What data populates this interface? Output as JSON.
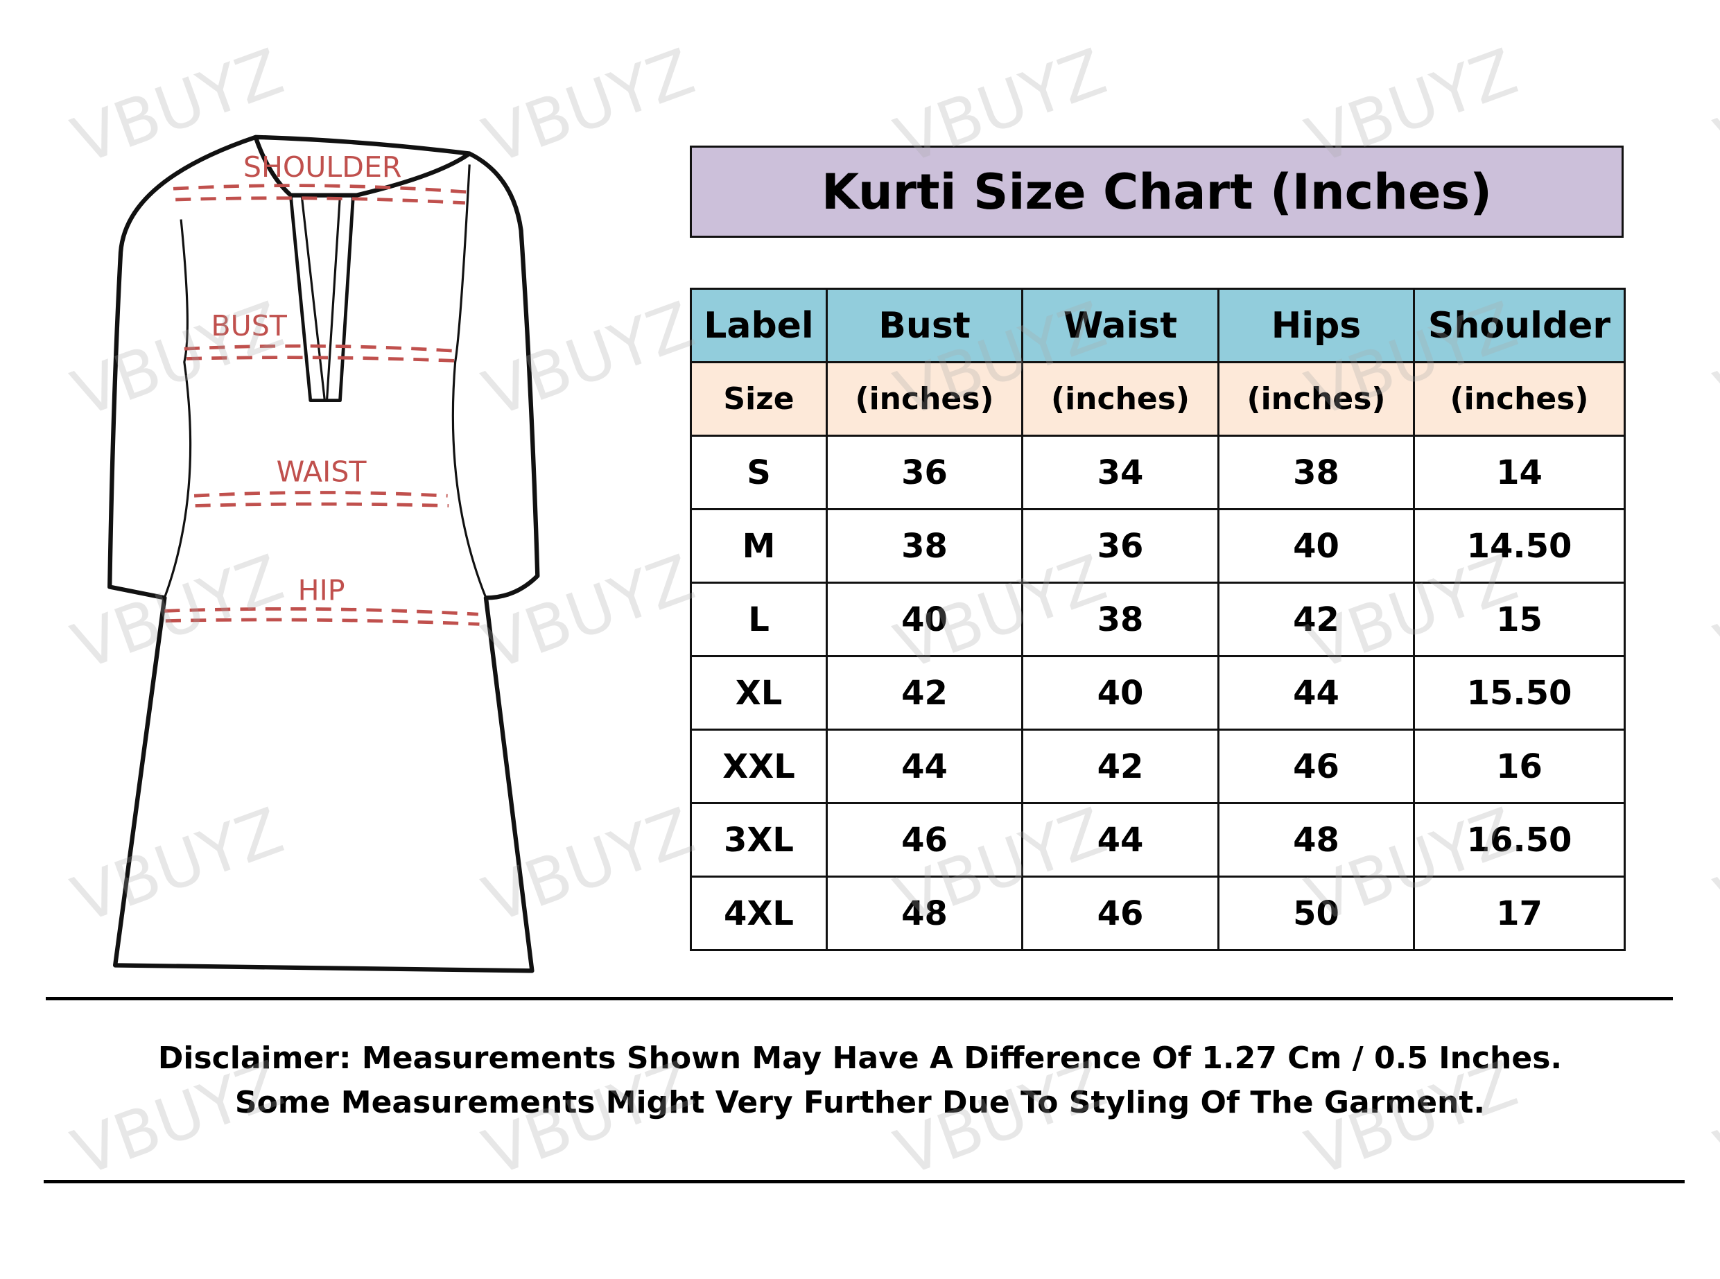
{
  "watermark": "VBUYZ",
  "diagram": {
    "labels": {
      "shoulder": "SHOULDER",
      "bust": "BUST",
      "waist": "WAIST",
      "hip": "HIP"
    },
    "measure_color": "#c0504d"
  },
  "title": "Kurti Size Chart (Inches)",
  "colors": {
    "title_bg": "#ccc0da",
    "header_bg": "#92cddc",
    "subheader_bg": "#fde9d9"
  },
  "table": {
    "headers": [
      "Label",
      "Bust",
      "Waist",
      "Hips",
      "Shoulder"
    ],
    "subheaders": [
      "Size",
      "(inches)",
      "(inches)",
      "(inches)",
      "(inches)"
    ],
    "rows": [
      [
        "S",
        "36",
        "34",
        "38",
        "14"
      ],
      [
        "M",
        "38",
        "36",
        "40",
        "14.50"
      ],
      [
        "L",
        "40",
        "38",
        "42",
        "15"
      ],
      [
        "XL",
        "42",
        "40",
        "44",
        "15.50"
      ],
      [
        "XXL",
        "44",
        "42",
        "46",
        "16"
      ],
      [
        "3XL",
        "46",
        "44",
        "48",
        "16.50"
      ],
      [
        "4XL",
        "48",
        "46",
        "50",
        "17"
      ]
    ]
  },
  "disclaimer": {
    "line1": "Disclaimer: Measurements Shown May Have A Difference Of 1.27 Cm / 0.5 Inches.",
    "line2": "Some Measurements Might Very Further Due To Styling Of The Garment."
  }
}
